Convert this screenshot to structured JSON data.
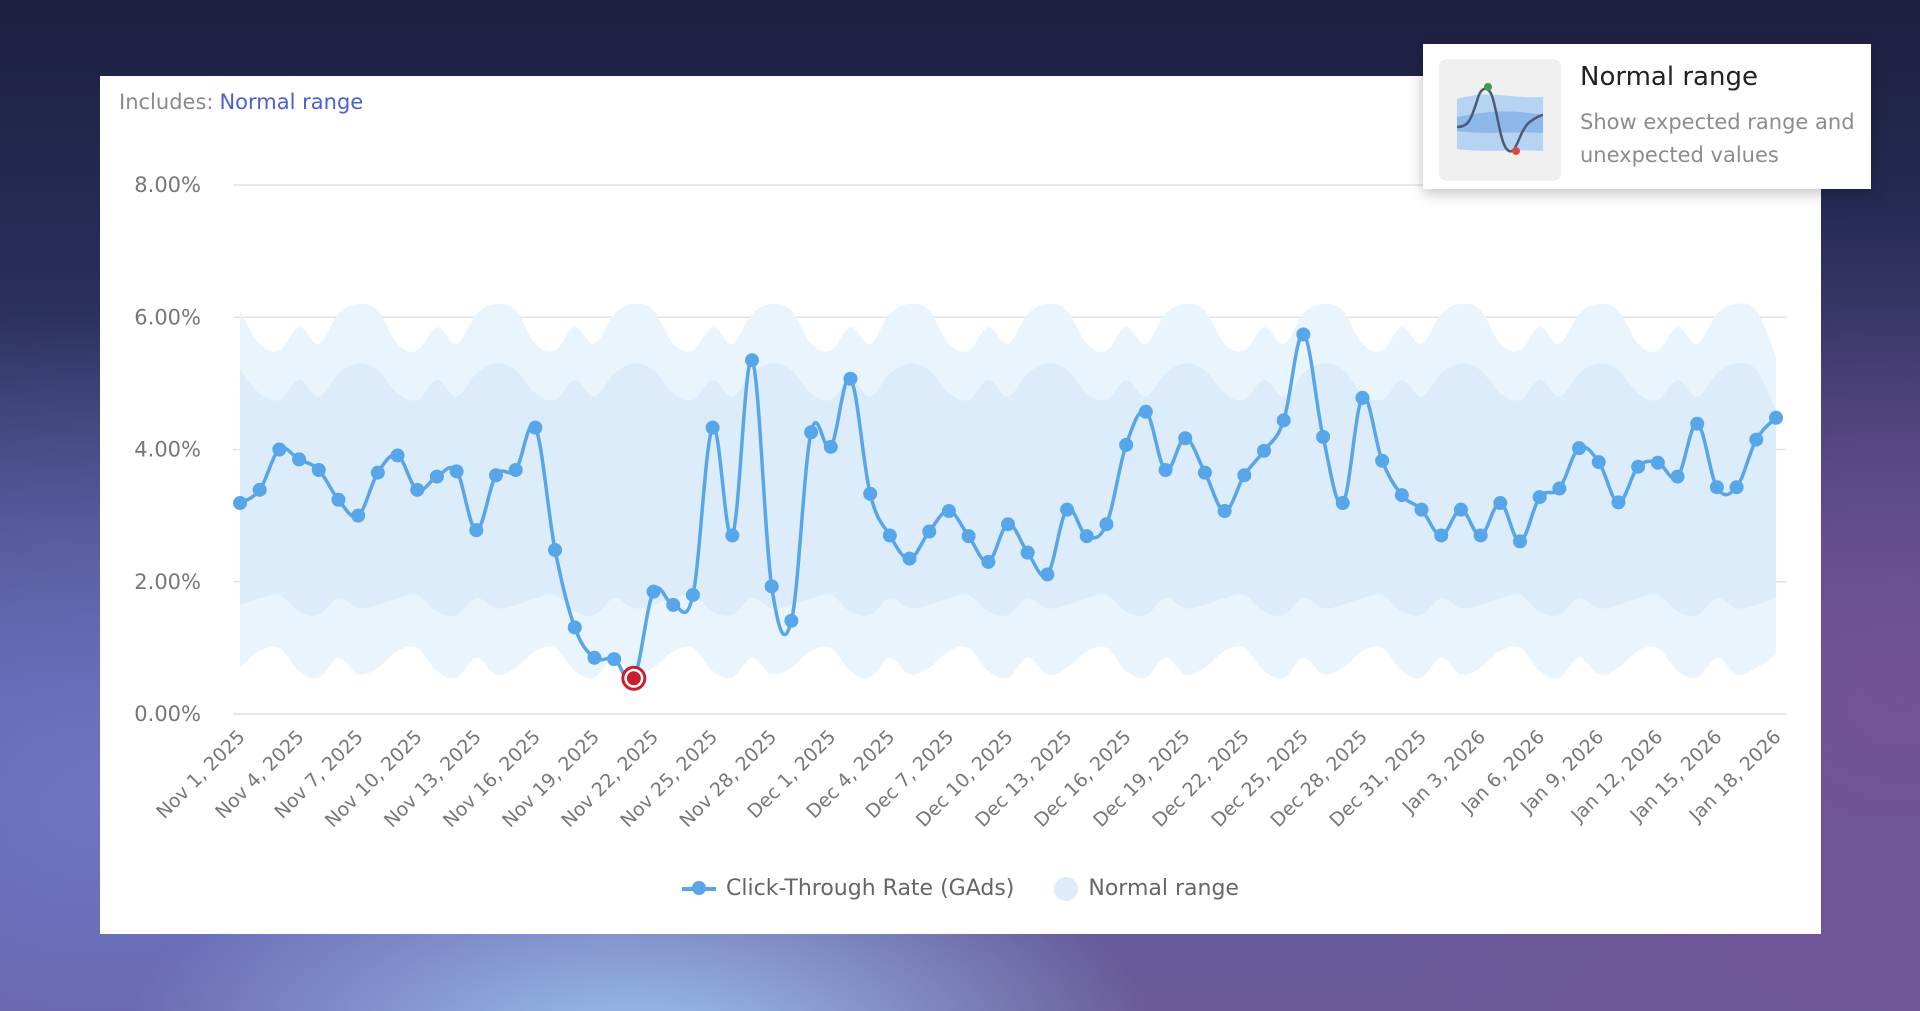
{
  "header": {
    "includes_label": "Includes:",
    "includes_link": "Normal range"
  },
  "popup": {
    "title": "Normal range",
    "description": "Show expected range and unexpected values",
    "icon": "normal-range-illustration"
  },
  "legend": {
    "series_label": "Click-Through Rate (GAds)",
    "band_label": "Normal range"
  },
  "colors": {
    "line": "#57a6ea",
    "band_inner": "#dcecfa",
    "band_outer": "#eaf4fd",
    "anomaly": "#c8202f"
  },
  "chart_data": {
    "type": "line",
    "title": "",
    "ylim": [
      0,
      8
    ],
    "y_ticks": [
      "0.00%",
      "2.00%",
      "4.00%",
      "6.00%",
      "8.00%"
    ],
    "y_tick_values": [
      0,
      2,
      4,
      6,
      8
    ],
    "x_start": "Nov 1, 2025",
    "x_tick_labels": [
      "Nov 1, 2025",
      "Nov 4, 2025",
      "Nov 7, 2025",
      "Nov 10, 2025",
      "Nov 13, 2025",
      "Nov 16, 2025",
      "Nov 19, 2025",
      "Nov 22, 2025",
      "Nov 25, 2025",
      "Nov 28, 2025",
      "Dec 1, 2025",
      "Dec 4, 2025",
      "Dec 7, 2025",
      "Dec 10, 2025",
      "Dec 13, 2025",
      "Dec 16, 2025",
      "Dec 19, 2025",
      "Dec 22, 2025",
      "Dec 25, 2025",
      "Dec 28, 2025",
      "Dec 31, 2025",
      "Jan 3, 2026",
      "Jan 6, 2026",
      "Jan 9, 2026",
      "Jan 12, 2026",
      "Jan 15, 2026",
      "Jan 18, 2026"
    ],
    "grid": true,
    "legend_position": "bottom",
    "series": [
      {
        "name": "Click-Through Rate (GAds)",
        "unit": "%",
        "values": [
          3.19,
          3.39,
          4.0,
          3.85,
          3.69,
          3.24,
          3.0,
          3.65,
          3.91,
          3.39,
          3.59,
          3.67,
          2.78,
          3.61,
          3.69,
          4.33,
          2.48,
          1.31,
          0.85,
          0.83,
          0.54,
          1.85,
          1.65,
          1.8,
          4.33,
          2.7,
          5.35,
          1.93,
          1.41,
          4.26,
          4.04,
          5.07,
          3.33,
          2.7,
          2.35,
          2.76,
          3.07,
          2.69,
          2.3,
          2.87,
          2.44,
          2.11,
          3.09,
          2.69,
          2.87,
          4.07,
          4.57,
          3.69,
          4.17,
          3.65,
          3.07,
          3.61,
          3.98,
          4.44,
          5.74,
          4.19,
          3.19,
          4.78,
          3.83,
          3.31,
          3.09,
          2.7,
          3.09,
          2.7,
          3.19,
          2.61,
          3.28,
          3.41,
          4.02,
          3.81,
          3.2,
          3.74,
          3.8,
          3.59,
          4.39,
          3.43,
          3.43,
          4.15,
          4.48
        ],
        "anomalies": [
          "Nov 21, 2025"
        ]
      }
    ],
    "normal_range": {
      "outer_upper": [
        6.1,
        5.6,
        5.5,
        5.85,
        5.6,
        6.05,
        6.2,
        6.1,
        5.6,
        5.5,
        5.85,
        5.6,
        6.05,
        6.2,
        6.1,
        5.6,
        5.5,
        5.85,
        5.6,
        6.05,
        6.2,
        6.1,
        5.6,
        5.5,
        5.85,
        5.6,
        6.05,
        6.2,
        6.1,
        5.6,
        5.5,
        5.85,
        5.6,
        6.05,
        6.2,
        6.1,
        5.6,
        5.5,
        5.85,
        5.6,
        6.05,
        6.2,
        6.1,
        5.6,
        5.5,
        5.85,
        5.6,
        6.05,
        6.2,
        6.1,
        5.6,
        5.5,
        5.85,
        5.6,
        6.05,
        6.2,
        6.1,
        5.6,
        5.5,
        5.85,
        5.6,
        6.05,
        6.2,
        6.1,
        5.6,
        5.5,
        5.85,
        5.6,
        6.05,
        6.2,
        6.1,
        5.6,
        5.5,
        5.85,
        5.6,
        6.05,
        6.2,
        6.1,
        5.4
      ],
      "inner_upper": [
        5.2,
        4.85,
        4.75,
        5.05,
        4.8,
        5.15,
        5.3,
        5.2,
        4.85,
        4.75,
        5.05,
        4.8,
        5.15,
        5.3,
        5.2,
        4.85,
        4.75,
        5.05,
        4.8,
        5.15,
        5.3,
        5.2,
        4.85,
        4.75,
        5.05,
        4.8,
        5.15,
        5.3,
        5.2,
        4.85,
        4.75,
        5.05,
        4.8,
        5.15,
        5.3,
        5.2,
        4.85,
        4.75,
        5.05,
        4.8,
        5.15,
        5.3,
        5.2,
        4.85,
        4.75,
        5.05,
        4.8,
        5.15,
        5.3,
        5.2,
        4.85,
        4.75,
        5.05,
        4.8,
        5.15,
        5.3,
        5.2,
        4.85,
        4.75,
        5.05,
        4.8,
        5.15,
        5.3,
        5.2,
        4.85,
        4.75,
        5.05,
        4.8,
        5.15,
        5.3,
        5.2,
        4.85,
        4.75,
        5.05,
        4.8,
        5.15,
        5.3,
        5.2,
        4.6
      ],
      "inner_lower": [
        1.65,
        1.75,
        1.8,
        1.55,
        1.5,
        1.75,
        1.6,
        1.65,
        1.75,
        1.8,
        1.55,
        1.5,
        1.75,
        1.6,
        1.65,
        1.75,
        1.8,
        1.55,
        1.5,
        1.75,
        1.6,
        1.65,
        1.75,
        1.8,
        1.55,
        1.5,
        1.75,
        1.6,
        1.65,
        1.75,
        1.8,
        1.55,
        1.5,
        1.75,
        1.6,
        1.65,
        1.75,
        1.8,
        1.55,
        1.5,
        1.75,
        1.6,
        1.65,
        1.75,
        1.8,
        1.55,
        1.5,
        1.75,
        1.6,
        1.65,
        1.75,
        1.8,
        1.55,
        1.5,
        1.75,
        1.6,
        1.65,
        1.75,
        1.8,
        1.55,
        1.5,
        1.75,
        1.6,
        1.65,
        1.75,
        1.8,
        1.55,
        1.5,
        1.75,
        1.6,
        1.65,
        1.75,
        1.8,
        1.55,
        1.5,
        1.75,
        1.6,
        1.65,
        1.75
      ],
      "outer_lower": [
        0.7,
        0.95,
        1.0,
        0.65,
        0.55,
        0.85,
        0.6,
        0.7,
        0.95,
        1.0,
        0.65,
        0.55,
        0.85,
        0.6,
        0.7,
        0.95,
        1.0,
        0.65,
        0.55,
        0.85,
        0.6,
        0.7,
        0.95,
        1.0,
        0.65,
        0.55,
        0.85,
        0.6,
        0.7,
        0.95,
        1.0,
        0.65,
        0.55,
        0.85,
        0.6,
        0.7,
        0.95,
        1.0,
        0.65,
        0.55,
        0.85,
        0.6,
        0.7,
        0.95,
        1.0,
        0.65,
        0.55,
        0.85,
        0.6,
        0.7,
        0.95,
        1.0,
        0.65,
        0.55,
        0.85,
        0.6,
        0.7,
        0.95,
        1.0,
        0.65,
        0.55,
        0.85,
        0.6,
        0.7,
        0.95,
        1.0,
        0.65,
        0.55,
        0.85,
        0.6,
        0.7,
        0.95,
        1.0,
        0.65,
        0.55,
        0.85,
        0.6,
        0.7,
        0.9
      ]
    }
  }
}
